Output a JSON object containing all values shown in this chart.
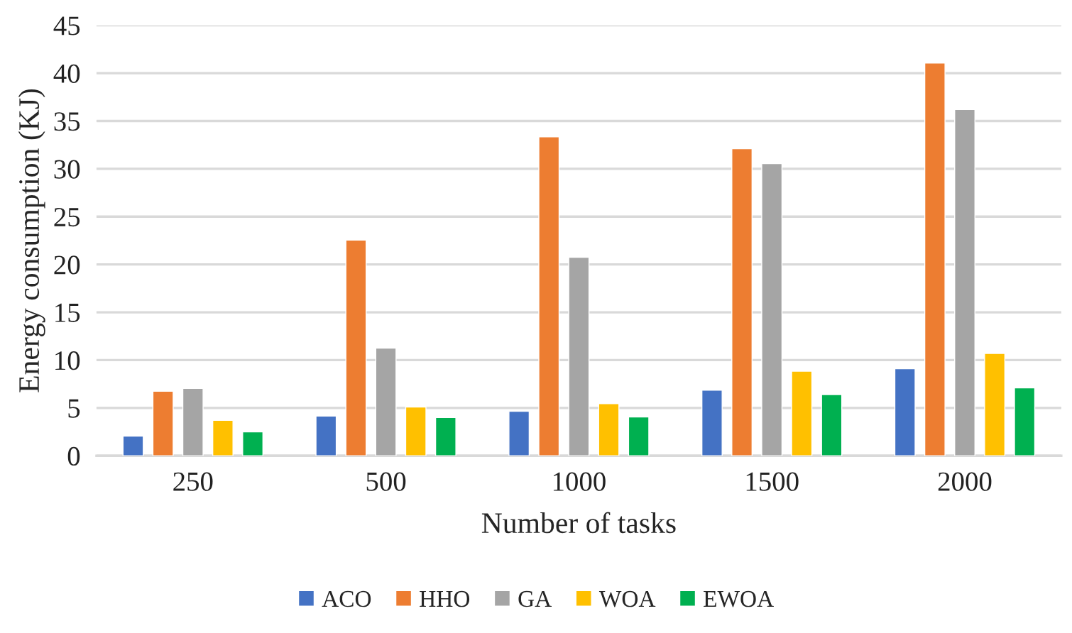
{
  "chart_data": {
    "type": "bar",
    "xlabel": "Number of tasks",
    "ylabel": "Energy consumption (KJ)",
    "categories": [
      "250",
      "500",
      "1000",
      "1500",
      "2000"
    ],
    "series": [
      {
        "name": "ACO",
        "color": "#4472c4",
        "values": [
          2.05,
          4.15,
          4.65,
          6.85,
          9.1
        ]
      },
      {
        "name": "HHO",
        "color": "#ed7d31",
        "values": [
          6.75,
          22.55,
          33.35,
          32.1,
          41.05
        ]
      },
      {
        "name": "GA",
        "color": "#a5a5a5",
        "values": [
          7.05,
          11.25,
          20.75,
          30.55,
          36.2
        ]
      },
      {
        "name": "WOA",
        "color": "#ffc000",
        "values": [
          3.7,
          5.1,
          5.45,
          8.85,
          10.7
        ]
      },
      {
        "name": "EWOA",
        "color": "#00b050",
        "values": [
          2.5,
          4.0,
          4.05,
          6.4,
          7.1
        ]
      }
    ],
    "ylim": [
      0,
      45
    ],
    "yticks": [
      0,
      5,
      10,
      15,
      20,
      25,
      30,
      35,
      40,
      45
    ],
    "grid": "y",
    "legend": "bottom"
  }
}
